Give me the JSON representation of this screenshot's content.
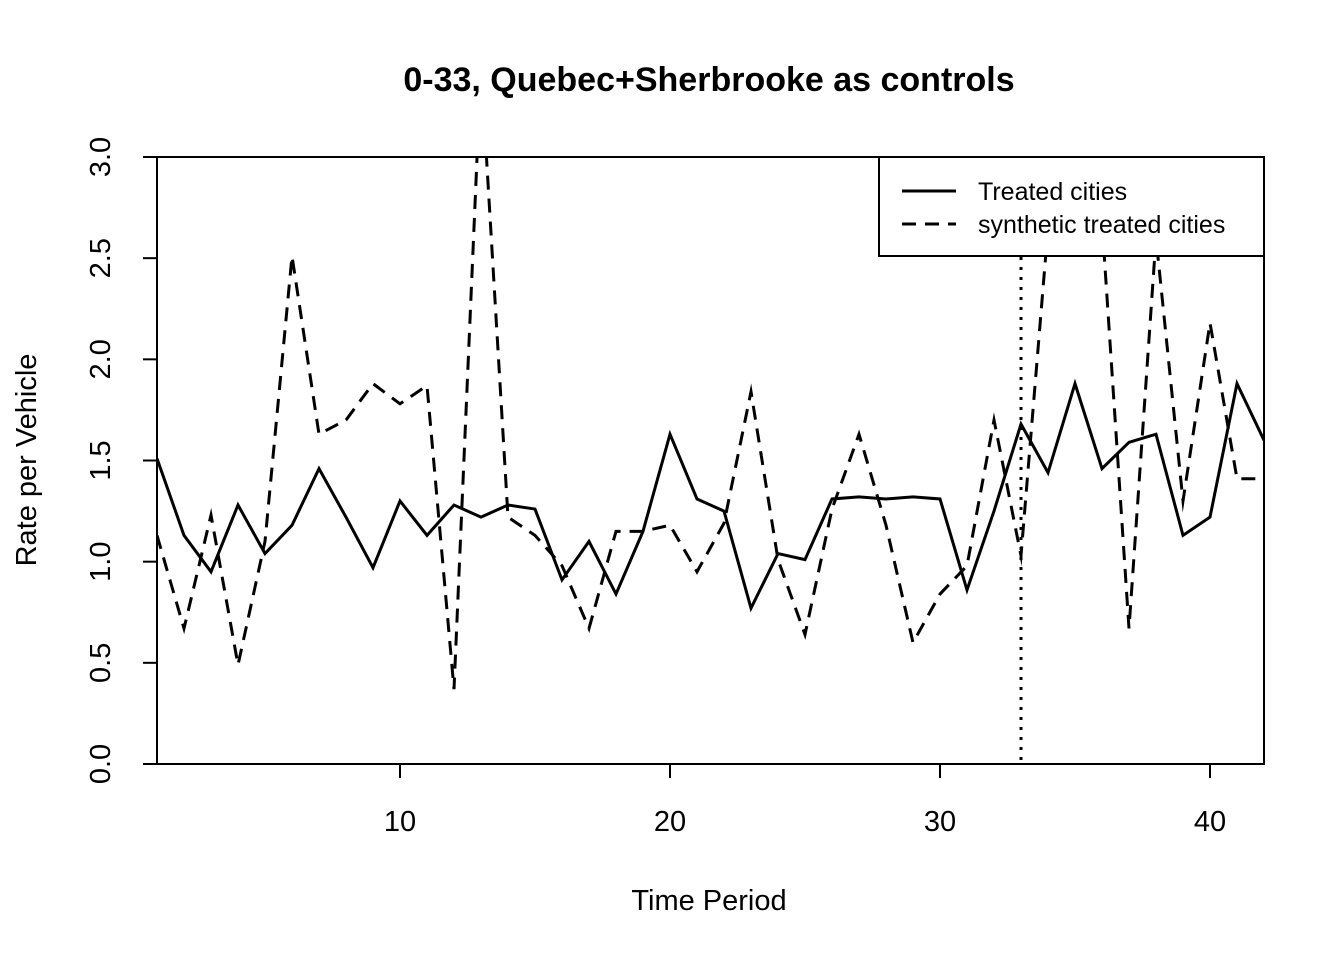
{
  "chart_data": {
    "type": "line",
    "title": "0-33, Quebec+Sherbrooke as controls",
    "xlabel": "Time Period",
    "ylabel": "Rate per Vehicle",
    "xlim": [
      1,
      42
    ],
    "ylim": [
      0,
      3
    ],
    "x_ticks": [
      10,
      20,
      30,
      40
    ],
    "y_ticks": [
      "0.0",
      "0.5",
      "1.0",
      "1.5",
      "2.0",
      "2.5",
      "3.0"
    ],
    "grid": false,
    "legend_position": "top-right",
    "vline": {
      "x": 33,
      "style": "dotted"
    },
    "x": [
      1,
      2,
      3,
      4,
      5,
      6,
      7,
      8,
      9,
      10,
      11,
      12,
      13,
      14,
      15,
      16,
      17,
      18,
      19,
      20,
      21,
      22,
      23,
      24,
      25,
      26,
      27,
      28,
      29,
      30,
      31,
      32,
      33,
      34,
      35,
      36,
      37,
      38,
      39,
      40,
      41,
      42
    ],
    "series": [
      {
        "name": "Treated cities",
        "style": "solid",
        "values": [
          1.51,
          1.13,
          0.95,
          1.28,
          1.04,
          1.18,
          1.46,
          1.22,
          0.97,
          1.3,
          1.13,
          1.28,
          1.22,
          1.28,
          1.26,
          0.91,
          1.1,
          0.84,
          1.15,
          1.63,
          1.31,
          1.25,
          0.77,
          1.04,
          1.01,
          1.31,
          1.32,
          1.31,
          1.32,
          1.31,
          0.86,
          1.25,
          1.68,
          1.44,
          1.88,
          1.46,
          1.59,
          1.63,
          1.13,
          1.22,
          1.88,
          1.6
        ]
      },
      {
        "name": "synthetic treated cities",
        "style": "dashed",
        "values": [
          1.13,
          0.67,
          1.23,
          0.49,
          1.1,
          2.51,
          1.63,
          1.7,
          1.88,
          1.78,
          1.87,
          0.37,
          3.45,
          1.22,
          1.13,
          0.98,
          0.67,
          1.15,
          1.15,
          1.18,
          0.95,
          1.19,
          1.84,
          1.01,
          0.64,
          1.26,
          1.63,
          1.18,
          0.6,
          0.84,
          0.98,
          1.7,
          1.03,
          2.65,
          2.66,
          2.68,
          0.67,
          2.6,
          1.3,
          2.18,
          1.41,
          1.41
        ]
      }
    ]
  }
}
